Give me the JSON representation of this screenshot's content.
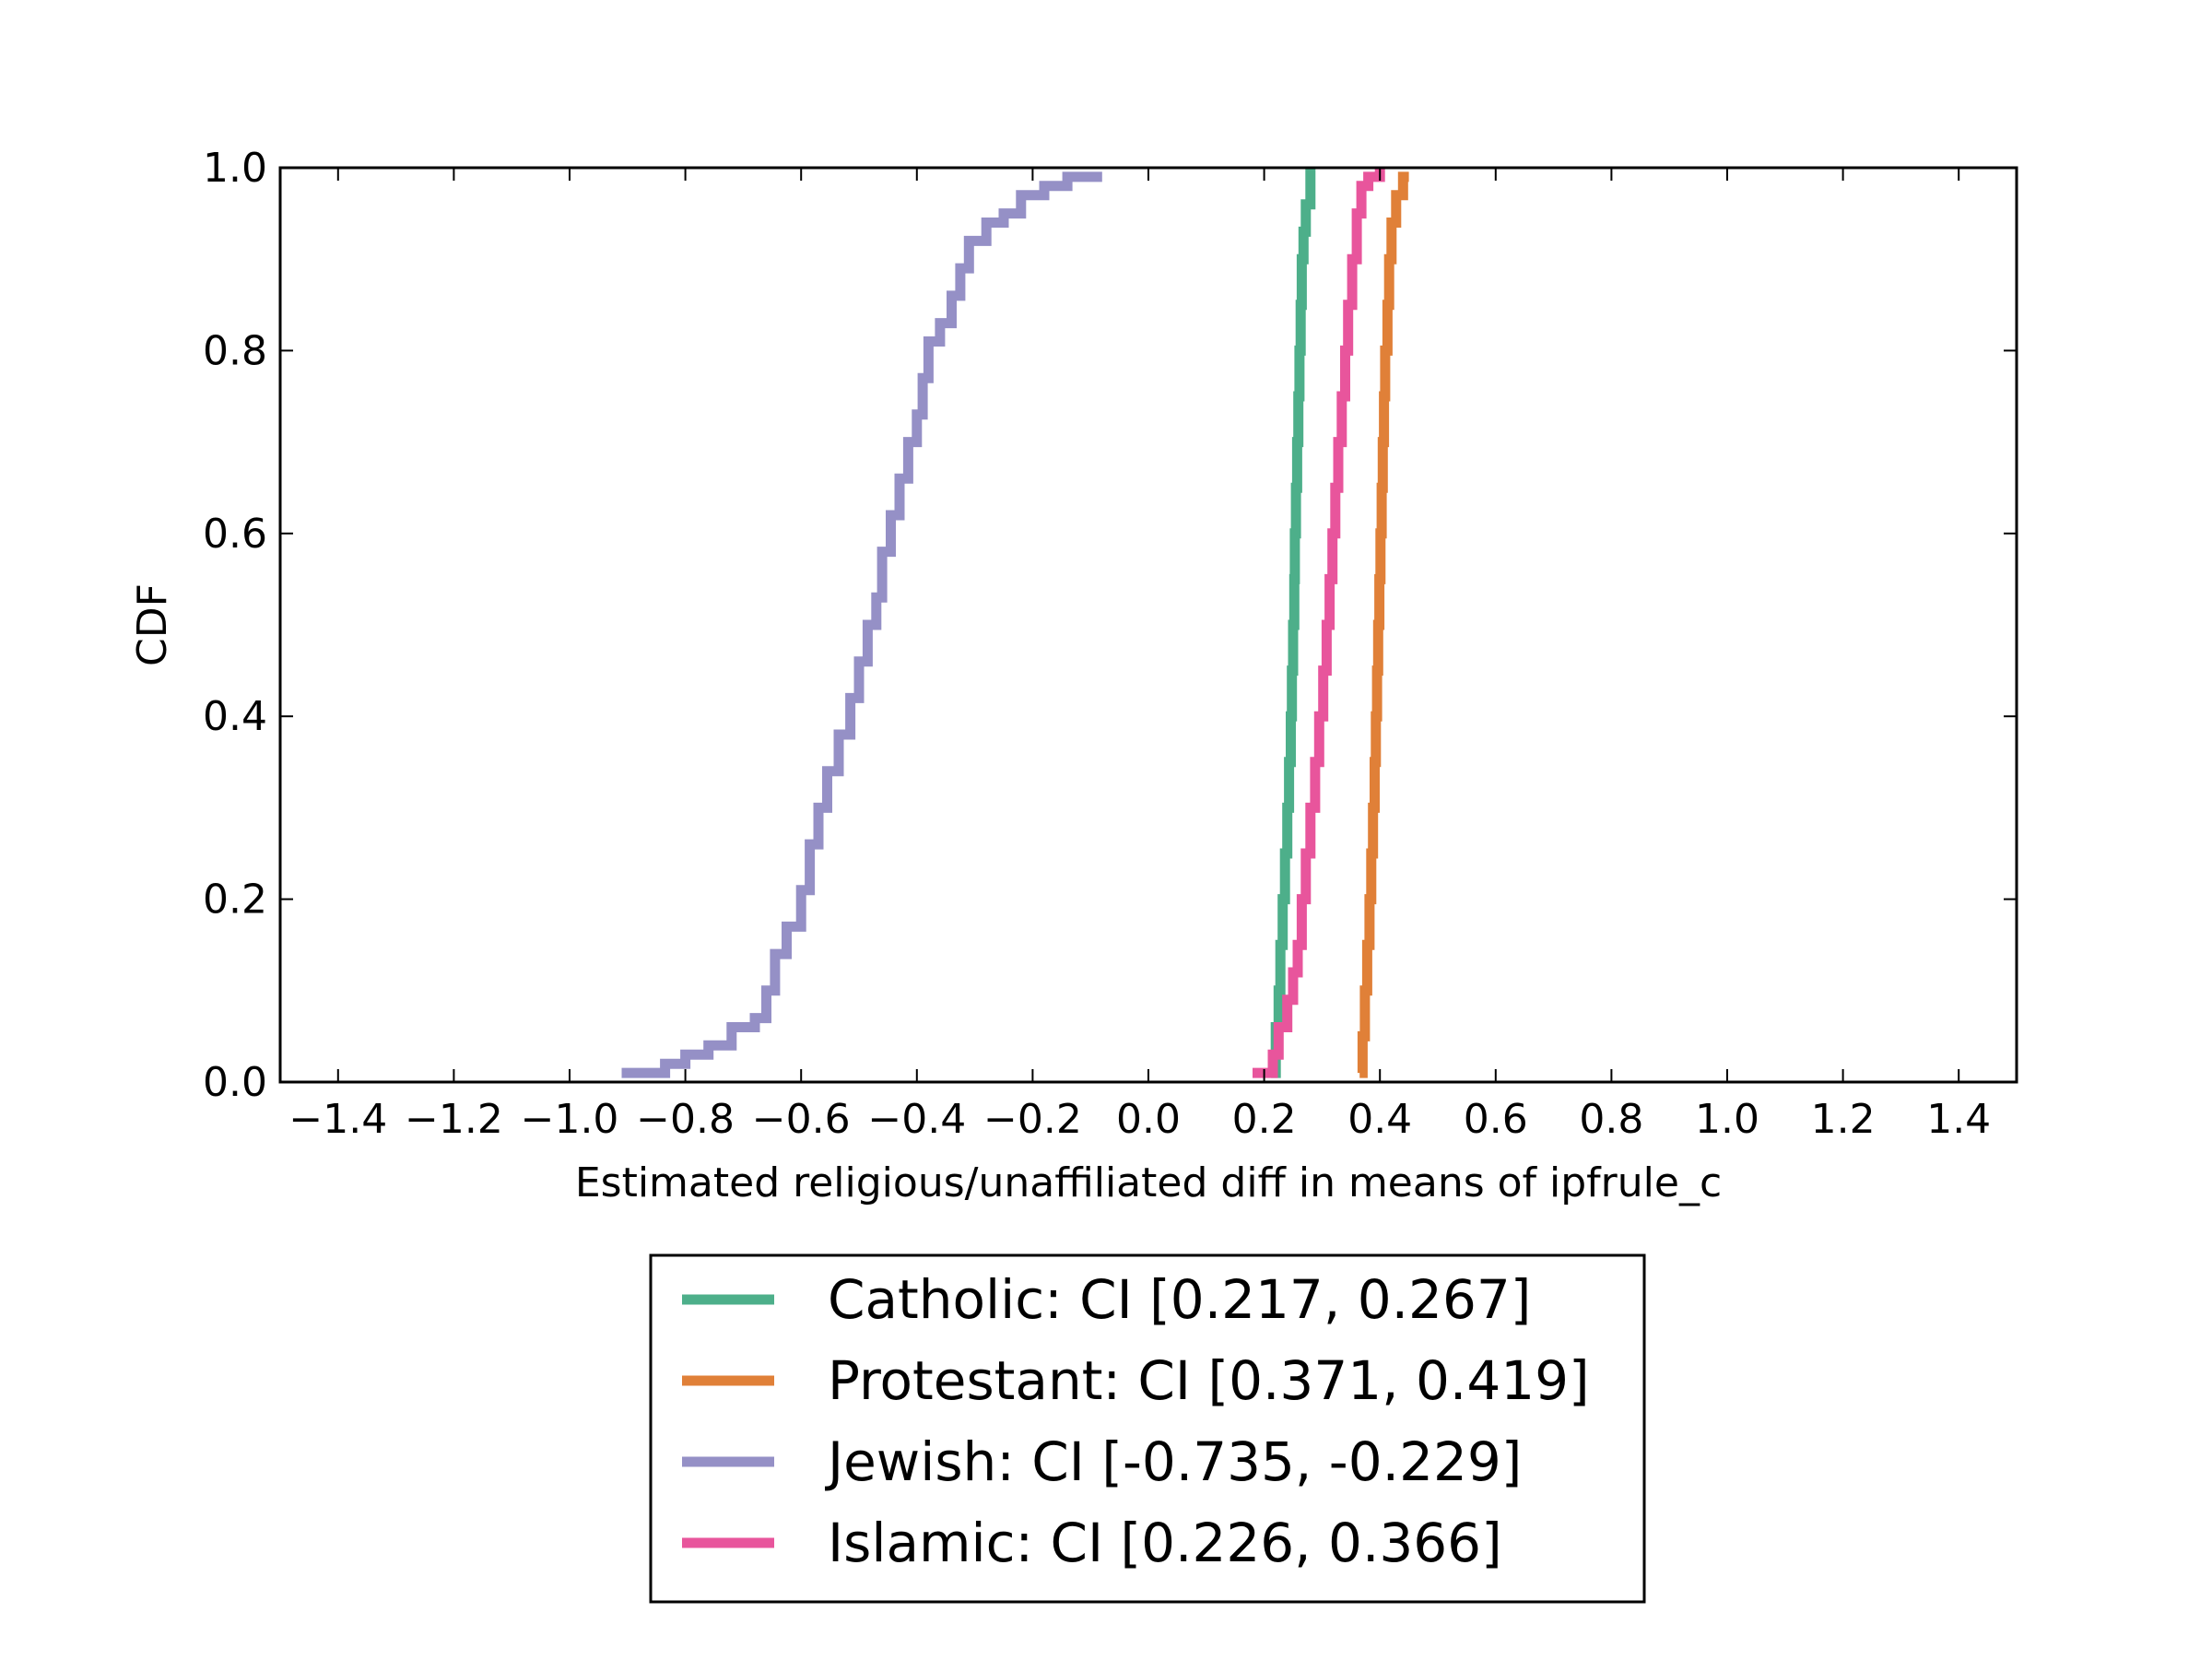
{
  "chart_data": {
    "type": "line",
    "xlabel": "Estimated religious/unaffiliated diff in means of ipfrule_c",
    "ylabel": "CDF",
    "xlim": [
      -1.5,
      1.5
    ],
    "ylim": [
      0.0,
      1.0
    ],
    "x_ticks": [
      -1.4,
      -1.2,
      -1.0,
      -0.8,
      -0.6,
      -0.4,
      -0.2,
      0.0,
      0.2,
      0.4,
      0.6,
      0.8,
      1.0,
      1.2,
      1.4
    ],
    "x_tick_labels": [
      "−1.4",
      "−1.2",
      "−1.0",
      "−0.8",
      "−0.6",
      "−0.4",
      "−0.2",
      "0.0",
      "0.2",
      "0.4",
      "0.6",
      "0.8",
      "1.0",
      "1.2",
      "1.4"
    ],
    "y_ticks": [
      0.0,
      0.2,
      0.4,
      0.6,
      0.8,
      1.0
    ],
    "y_tick_labels": [
      "0.0",
      "0.2",
      "0.4",
      "0.6",
      "0.8",
      "1.0"
    ],
    "grid": false,
    "legend_position": "below-center",
    "series": [
      {
        "name": "Catholic: CI [0.217, 0.267]",
        "color": "#4daf8a",
        "points": [
          [
            0.212,
            0.01
          ],
          [
            0.22,
            0.06
          ],
          [
            0.225,
            0.1
          ],
          [
            0.228,
            0.15
          ],
          [
            0.232,
            0.2
          ],
          [
            0.236,
            0.25
          ],
          [
            0.24,
            0.3
          ],
          [
            0.243,
            0.35
          ],
          [
            0.246,
            0.4
          ],
          [
            0.248,
            0.45
          ],
          [
            0.25,
            0.5
          ],
          [
            0.252,
            0.55
          ],
          [
            0.253,
            0.6
          ],
          [
            0.255,
            0.65
          ],
          [
            0.257,
            0.7
          ],
          [
            0.259,
            0.75
          ],
          [
            0.261,
            0.8
          ],
          [
            0.263,
            0.85
          ],
          [
            0.265,
            0.9
          ],
          [
            0.268,
            0.93
          ],
          [
            0.272,
            0.96
          ],
          [
            0.28,
            1.0
          ]
        ]
      },
      {
        "name": "Protestant: CI [0.371, 0.419]",
        "color": "#e08038",
        "points": [
          [
            0.365,
            0.01
          ],
          [
            0.37,
            0.05
          ],
          [
            0.374,
            0.1
          ],
          [
            0.378,
            0.15
          ],
          [
            0.382,
            0.2
          ],
          [
            0.385,
            0.25
          ],
          [
            0.388,
            0.3
          ],
          [
            0.391,
            0.35
          ],
          [
            0.393,
            0.4
          ],
          [
            0.395,
            0.45
          ],
          [
            0.397,
            0.5
          ],
          [
            0.399,
            0.55
          ],
          [
            0.401,
            0.6
          ],
          [
            0.403,
            0.65
          ],
          [
            0.405,
            0.7
          ],
          [
            0.407,
            0.75
          ],
          [
            0.409,
            0.8
          ],
          [
            0.413,
            0.85
          ],
          [
            0.416,
            0.9
          ],
          [
            0.42,
            0.94
          ],
          [
            0.428,
            0.97
          ],
          [
            0.44,
            0.99
          ],
          [
            0.45,
            0.99
          ]
        ]
      },
      {
        "name": "Jewish: CI [-0.735, -0.229]",
        "color": "#9590c6",
        "points": [
          [
            -0.91,
            0.01
          ],
          [
            -0.86,
            0.01
          ],
          [
            -0.835,
            0.02
          ],
          [
            -0.8,
            0.03
          ],
          [
            -0.76,
            0.04
          ],
          [
            -0.72,
            0.06
          ],
          [
            -0.68,
            0.07
          ],
          [
            -0.66,
            0.1
          ],
          [
            -0.645,
            0.14
          ],
          [
            -0.625,
            0.17
          ],
          [
            -0.6,
            0.21
          ],
          [
            -0.585,
            0.26
          ],
          [
            -0.57,
            0.3
          ],
          [
            -0.555,
            0.34
          ],
          [
            -0.535,
            0.38
          ],
          [
            -0.515,
            0.42
          ],
          [
            -0.5,
            0.46
          ],
          [
            -0.485,
            0.5
          ],
          [
            -0.47,
            0.53
          ],
          [
            -0.46,
            0.58
          ],
          [
            -0.445,
            0.62
          ],
          [
            -0.43,
            0.66
          ],
          [
            -0.415,
            0.7
          ],
          [
            -0.4,
            0.73
          ],
          [
            -0.39,
            0.77
          ],
          [
            -0.38,
            0.81
          ],
          [
            -0.36,
            0.83
          ],
          [
            -0.34,
            0.86
          ],
          [
            -0.325,
            0.89
          ],
          [
            -0.31,
            0.92
          ],
          [
            -0.28,
            0.94
          ],
          [
            -0.25,
            0.95
          ],
          [
            -0.22,
            0.97
          ],
          [
            -0.18,
            0.98
          ],
          [
            -0.14,
            0.99
          ],
          [
            -0.08,
            0.99
          ]
        ]
      },
      {
        "name": "Islamic: CI [0.226, 0.366]",
        "color": "#e8559c",
        "points": [
          [
            0.18,
            0.01
          ],
          [
            0.205,
            0.01
          ],
          [
            0.215,
            0.03
          ],
          [
            0.225,
            0.06
          ],
          [
            0.24,
            0.09
          ],
          [
            0.25,
            0.12
          ],
          [
            0.258,
            0.15
          ],
          [
            0.265,
            0.2
          ],
          [
            0.272,
            0.25
          ],
          [
            0.28,
            0.3
          ],
          [
            0.288,
            0.35
          ],
          [
            0.295,
            0.4
          ],
          [
            0.302,
            0.45
          ],
          [
            0.308,
            0.5
          ],
          [
            0.313,
            0.55
          ],
          [
            0.318,
            0.6
          ],
          [
            0.323,
            0.65
          ],
          [
            0.328,
            0.7
          ],
          [
            0.334,
            0.75
          ],
          [
            0.34,
            0.8
          ],
          [
            0.345,
            0.85
          ],
          [
            0.352,
            0.9
          ],
          [
            0.36,
            0.95
          ],
          [
            0.368,
            0.98
          ],
          [
            0.38,
            0.99
          ],
          [
            0.4,
            1.0
          ]
        ]
      }
    ]
  }
}
